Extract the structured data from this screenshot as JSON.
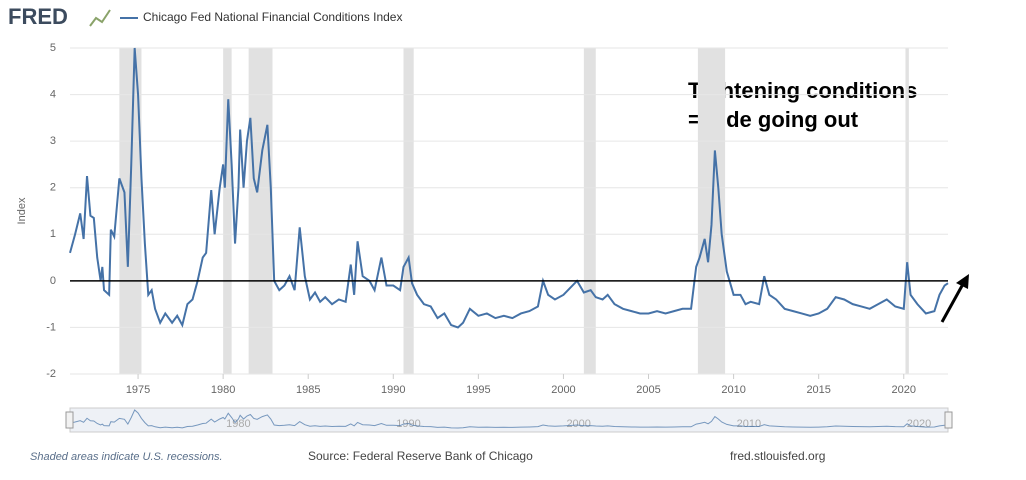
{
  "chart_data": {
    "type": "line",
    "logo": "FRED",
    "y_label": "Index",
    "annotations": [
      "Tightening conditions",
      "= Tide going out"
    ],
    "hline": 0,
    "recession_note": "Shaded areas indicate U.S. recessions.",
    "source": "Source: Federal Reserve Bank of Chicago",
    "site": "fred.stlouisfed.org",
    "xlim": [
      1971,
      2022.6
    ],
    "xticks": [
      1975,
      1980,
      1985,
      1990,
      1995,
      2000,
      2005,
      2010,
      2015,
      2020
    ],
    "navigator_ticks": [
      1980,
      1990,
      2000,
      2010,
      2020
    ],
    "ylim": [
      -2,
      5
    ],
    "yticks": [
      -2,
      -1,
      0,
      1,
      2,
      3,
      4,
      5
    ],
    "grid": true,
    "recessions": [
      [
        1973.9,
        1975.2
      ],
      [
        1980.0,
        1980.5
      ],
      [
        1981.5,
        1982.9
      ],
      [
        1990.6,
        1991.2
      ],
      [
        2001.2,
        2001.9
      ],
      [
        2007.9,
        2009.5
      ],
      [
        2020.1,
        2020.3
      ]
    ],
    "x": [
      1971.0,
      1971.3,
      1971.6,
      1971.8,
      1972.0,
      1972.2,
      1972.4,
      1972.6,
      1972.8,
      1972.9,
      1973.0,
      1973.3,
      1973.4,
      1973.6,
      1973.9,
      1974.2,
      1974.4,
      1974.6,
      1974.8,
      1975.0,
      1975.2,
      1975.4,
      1975.6,
      1975.8,
      1976.0,
      1976.3,
      1976.6,
      1977.0,
      1977.3,
      1977.6,
      1977.9,
      1978.2,
      1978.5,
      1978.8,
      1979.0,
      1979.3,
      1979.5,
      1979.8,
      1980.0,
      1980.1,
      1980.3,
      1980.5,
      1980.7,
      1980.9,
      1981.0,
      1981.2,
      1981.4,
      1981.6,
      1981.8,
      1982.0,
      1982.3,
      1982.6,
      1982.8,
      1983.0,
      1983.3,
      1983.6,
      1983.9,
      1984.2,
      1984.5,
      1984.8,
      1985.1,
      1985.4,
      1985.7,
      1986.0,
      1986.4,
      1986.8,
      1987.2,
      1987.5,
      1987.7,
      1987.9,
      1988.2,
      1988.6,
      1988.9,
      1989.3,
      1989.6,
      1990.0,
      1990.4,
      1990.6,
      1990.9,
      1991.1,
      1991.4,
      1991.8,
      1992.2,
      1992.6,
      1993.0,
      1993.4,
      1993.8,
      1994.1,
      1994.5,
      1995.0,
      1995.5,
      1996.0,
      1996.5,
      1997.0,
      1997.5,
      1998.0,
      1998.5,
      1998.8,
      1999.1,
      1999.5,
      2000.0,
      2000.4,
      2000.8,
      2001.2,
      2001.6,
      2001.9,
      2002.3,
      2002.6,
      2003.0,
      2003.5,
      2004.0,
      2004.5,
      2005.0,
      2005.5,
      2006.0,
      2006.5,
      2007.0,
      2007.5,
      2007.8,
      2008.0,
      2008.3,
      2008.5,
      2008.7,
      2008.9,
      2009.1,
      2009.3,
      2009.6,
      2010.0,
      2010.4,
      2010.7,
      2011.0,
      2011.5,
      2011.8,
      2012.1,
      2012.5,
      2013.0,
      2013.5,
      2014.0,
      2014.5,
      2015.0,
      2015.5,
      2016.0,
      2016.5,
      2017.0,
      2017.5,
      2018.0,
      2018.5,
      2019.0,
      2019.5,
      2020.0,
      2020.2,
      2020.4,
      2020.8,
      2021.3,
      2021.8,
      2022.1,
      2022.4,
      2022.6
    ],
    "series": [
      {
        "name": "Chicago Fed National Financial Conditions Index",
        "color": "#4572a7",
        "values": [
          0.6,
          1.0,
          1.45,
          0.9,
          2.25,
          1.4,
          1.35,
          0.5,
          0.0,
          0.3,
          -0.2,
          -0.3,
          1.1,
          0.95,
          2.2,
          1.9,
          0.3,
          2.5,
          5.0,
          4.0,
          2.2,
          0.8,
          -0.3,
          -0.2,
          -0.6,
          -0.9,
          -0.7,
          -0.9,
          -0.75,
          -0.95,
          -0.5,
          -0.4,
          0.0,
          0.5,
          0.6,
          1.95,
          1.0,
          2.0,
          2.5,
          2.0,
          3.9,
          2.5,
          0.8,
          2.0,
          3.25,
          2.0,
          3.0,
          3.5,
          2.2,
          1.9,
          2.8,
          3.35,
          2.0,
          0.0,
          -0.2,
          -0.1,
          0.1,
          -0.2,
          1.15,
          0.1,
          -0.4,
          -0.25,
          -0.45,
          -0.35,
          -0.5,
          -0.4,
          -0.45,
          0.35,
          -0.3,
          0.85,
          0.1,
          0.0,
          -0.2,
          0.5,
          -0.1,
          -0.1,
          -0.2,
          0.3,
          0.5,
          -0.05,
          -0.3,
          -0.5,
          -0.55,
          -0.8,
          -0.7,
          -0.95,
          -1.0,
          -0.9,
          -0.6,
          -0.75,
          -0.7,
          -0.8,
          -0.75,
          -0.8,
          -0.7,
          -0.65,
          -0.55,
          0.0,
          -0.3,
          -0.4,
          -0.3,
          -0.15,
          0.0,
          -0.25,
          -0.2,
          -0.35,
          -0.4,
          -0.3,
          -0.5,
          -0.6,
          -0.65,
          -0.7,
          -0.7,
          -0.65,
          -0.7,
          -0.65,
          -0.6,
          -0.6,
          0.3,
          0.5,
          0.9,
          0.4,
          1.2,
          2.8,
          2.0,
          1.0,
          0.2,
          -0.3,
          -0.3,
          -0.5,
          -0.45,
          -0.5,
          0.1,
          -0.3,
          -0.4,
          -0.6,
          -0.65,
          -0.7,
          -0.75,
          -0.7,
          -0.6,
          -0.35,
          -0.4,
          -0.5,
          -0.55,
          -0.6,
          -0.5,
          -0.4,
          -0.55,
          -0.6,
          0.4,
          -0.3,
          -0.5,
          -0.7,
          -0.65,
          -0.3,
          -0.1,
          -0.05
        ]
      }
    ]
  }
}
